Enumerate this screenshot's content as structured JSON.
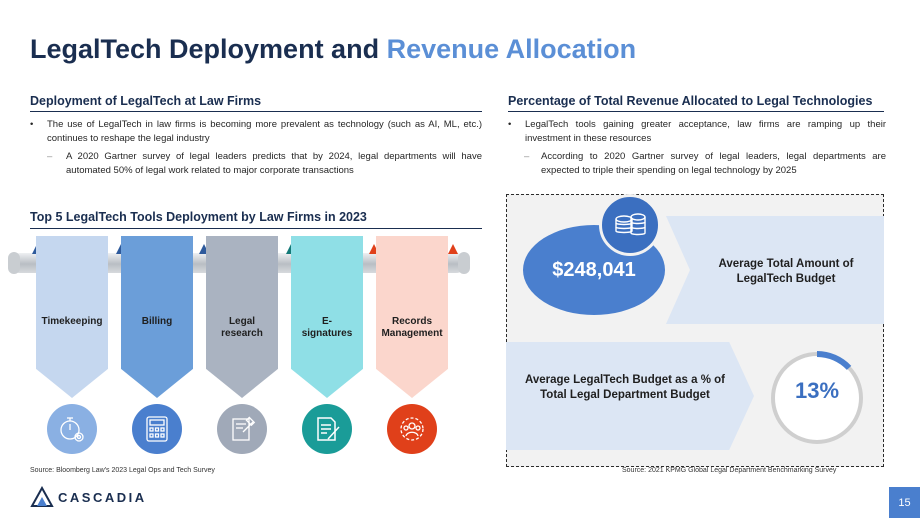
{
  "title": {
    "main": "LegalTech Deployment and ",
    "accent": "Revenue Allocation"
  },
  "left": {
    "heading": "Deployment of LegalTech at Law Firms",
    "bullet1": "The use of LegalTech in law firms is becoming more prevalent as technology (such as AI, ML, etc.) continues to reshape the legal industry",
    "sub1": "A 2020 Gartner survey of legal leaders predicts that by 2024, legal departments will have automated 50% of legal work related to major corporate transactions",
    "tools_heading": "Top 5 LegalTech Tools Deployment by Law Firms in 2023",
    "tools": [
      {
        "label": "Timekeeping",
        "color": "#c5d7ef",
        "icon": "stopwatch-gear-icon",
        "icon_bg": "#8ab0e3"
      },
      {
        "label": "Billing",
        "color": "#6b9ed9",
        "icon": "calculator-icon",
        "icon_bg": "#4a7fce"
      },
      {
        "label": "Legal research",
        "color": "#aab3c1",
        "icon": "gavel-book-icon",
        "icon_bg": "#a0a9b8"
      },
      {
        "label": "E-signatures",
        "color": "#8fdfe6",
        "icon": "document-pen-icon",
        "icon_bg": "#1a9c98"
      },
      {
        "label": "Records Management",
        "color": "#fbd6cc",
        "icon": "records-team-icon",
        "icon_bg": "#e0401a"
      }
    ],
    "source": "Source: Bloomberg Law's 2023 Legal Ops and Tech Survey"
  },
  "right": {
    "heading": "Percentage of Total Revenue Allocated to Legal Technologies",
    "bullet1": "LegalTech tools gaining greater acceptance, law firms are ramping up their investment in these resources",
    "sub1": "According to 2020 Gartner survey of legal leaders, legal departments are expected to triple their spending on legal technology by 2025",
    "budget_value": "$248,041",
    "budget_label": "Average Total Amount of LegalTech Budget",
    "percent_label": "Average LegalTech Budget as a % of Total Legal Department Budget",
    "percent_value": "13%",
    "percent_fraction": 0.13,
    "source": "Source: 2021 KPMG Global Legal Department Benchmarking Survey"
  },
  "footer": {
    "logo": "CASCADIA",
    "page": "15"
  },
  "colors": {
    "navy": "#1a2e50",
    "accent": "#5b8fd6",
    "blue": "#4a7fce"
  }
}
